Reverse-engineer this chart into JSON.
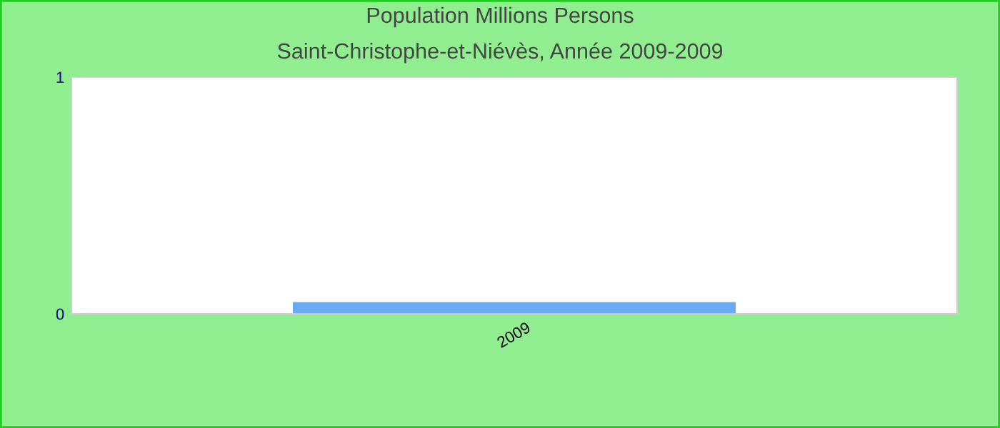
{
  "chart_data": {
    "type": "bar",
    "title": "Population Millions Persons",
    "subtitle": "Saint-Christophe-et-Niévès, Année 2009-2009",
    "categories": [
      "2009"
    ],
    "series": [
      {
        "color": "#6aaaf0",
        "values": [
          0.05
        ]
      }
    ],
    "ylim": [
      0,
      1
    ],
    "yticks": [
      0,
      1
    ],
    "grid": false,
    "legend": false
  }
}
